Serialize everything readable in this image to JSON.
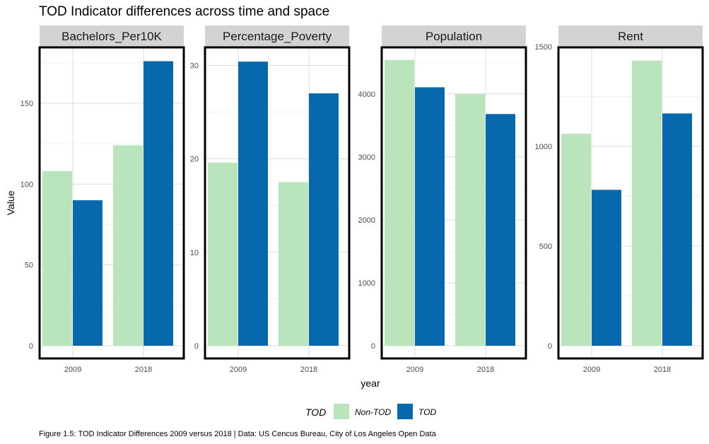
{
  "title": "TOD Indicator differences across time and space",
  "caption": "Figure 1.5: TOD Indicator Differences 2009 versus 2018 | Data: US Cencus Bureau, City of Los Angeles Open Data",
  "colors": {
    "non_tod": "#bae4bc",
    "tod": "#0868ac",
    "strip": "#d3d3d3",
    "grid": "#dcdcdc"
  },
  "chart_data": {
    "type": "bar",
    "xlabel": "year",
    "ylabel": "Value",
    "categories": [
      "2009",
      "2018"
    ],
    "legend": {
      "title": "TOD",
      "entries": [
        "Non-TOD",
        "TOD"
      ],
      "placement": "bottom"
    },
    "grid": true,
    "panels": [
      {
        "name": "Bachelors_Per10K",
        "ylim": [
          0,
          185
        ],
        "yticks": [
          0,
          50,
          100,
          150
        ],
        "series": [
          {
            "name": "Non-TOD",
            "values": [
              108,
              124
            ]
          },
          {
            "name": "TOD",
            "values": [
              90,
              176
            ]
          }
        ]
      },
      {
        "name": "Percentage_Poverty",
        "ylim": [
          0,
          32
        ],
        "yticks": [
          0,
          10,
          20,
          30
        ],
        "series": [
          {
            "name": "Non-TOD",
            "values": [
              19.6,
              17.5
            ]
          },
          {
            "name": "TOD",
            "values": [
              30.4,
              27.0
            ]
          }
        ]
      },
      {
        "name": "Population",
        "ylim": [
          0,
          4750
        ],
        "yticks": [
          0,
          1000,
          2000,
          3000,
          4000
        ],
        "series": [
          {
            "name": "Non-TOD",
            "values": [
              4540,
              3995
            ]
          },
          {
            "name": "TOD",
            "values": [
              4105,
              3680
            ]
          }
        ]
      },
      {
        "name": "Rent",
        "ylim": [
          0,
          1500
        ],
        "yticks": [
          0,
          500,
          1000,
          1500
        ],
        "series": [
          {
            "name": "Non-TOD",
            "values": [
              1063,
              1430
            ]
          },
          {
            "name": "TOD",
            "values": [
              782,
              1165
            ]
          }
        ]
      }
    ]
  }
}
